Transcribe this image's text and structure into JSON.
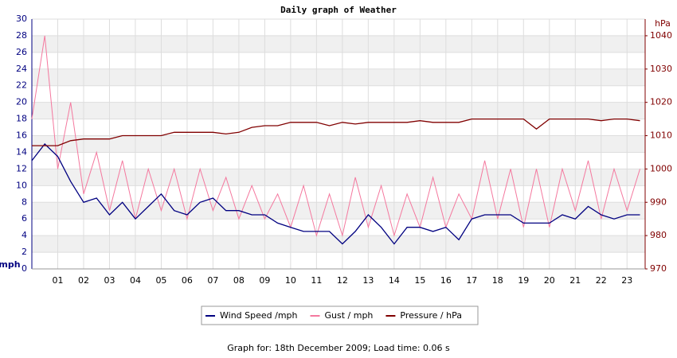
{
  "chart_data": {
    "type": "line",
    "title": "Daily graph of Weather",
    "y_label": "mph",
    "y2_label": "hPa",
    "x": [
      0,
      0.5,
      1,
      1.5,
      2,
      2.5,
      3,
      3.5,
      4,
      4.5,
      5,
      5.5,
      6,
      6.5,
      7,
      7.5,
      8,
      8.5,
      9,
      9.5,
      10,
      10.5,
      11,
      11.5,
      12,
      12.5,
      13,
      13.5,
      14,
      14.5,
      15,
      15.5,
      16,
      16.5,
      17,
      17.5,
      18,
      18.5,
      19,
      19.5,
      20,
      20.5,
      21,
      21.5,
      22,
      22.5,
      23,
      23.5
    ],
    "xlim": [
      0,
      23.7
    ],
    "xticks": [
      {
        "value": 1,
        "label": "01"
      },
      {
        "value": 2,
        "label": "02"
      },
      {
        "value": 3,
        "label": "03"
      },
      {
        "value": 4,
        "label": "04"
      },
      {
        "value": 5,
        "label": "05"
      },
      {
        "value": 6,
        "label": "06"
      },
      {
        "value": 7,
        "label": "07"
      },
      {
        "value": 8,
        "label": "08"
      },
      {
        "value": 9,
        "label": "09"
      },
      10,
      11,
      12,
      13,
      14,
      15,
      16,
      17,
      18,
      19,
      20,
      21,
      22,
      23
    ],
    "ylim": [
      0,
      30
    ],
    "yticks": [
      0,
      2,
      4,
      6,
      8,
      10,
      12,
      14,
      16,
      18,
      20,
      22,
      24,
      26,
      28,
      30
    ],
    "y2lim": [
      970,
      1045
    ],
    "y2ticks": [
      970,
      980,
      990,
      1000,
      1010,
      1020,
      1030,
      1040
    ],
    "grid": true,
    "series": [
      {
        "name": "Wind Speed /mph",
        "color": "#000080",
        "values": [
          13,
          15,
          13.5,
          10.5,
          8,
          8.5,
          6.5,
          8,
          6,
          7.5,
          9,
          7,
          6.5,
          8,
          8.5,
          7,
          7,
          6.5,
          6.5,
          5.5,
          5,
          4.5,
          4.5,
          4.5,
          3,
          4.5,
          6.5,
          5,
          3,
          5,
          5,
          4.5,
          5,
          3.5,
          6,
          6.5,
          6.5,
          6.5,
          5.5,
          5.5,
          5.5,
          6.5,
          6,
          7.5,
          6.5,
          6,
          6.5,
          6.5
        ]
      },
      {
        "name": "Gust / mph",
        "color": "#f4789e",
        "values": [
          18,
          28,
          12,
          20,
          9,
          14,
          7,
          13,
          6,
          12,
          7,
          12,
          6,
          12,
          7,
          11,
          6,
          10,
          6,
          9,
          5,
          10,
          4,
          9,
          4,
          11,
          5,
          10,
          4,
          9,
          5,
          11,
          5,
          9,
          6,
          13,
          6,
          12,
          5,
          12,
          5,
          12,
          7,
          13,
          6,
          12,
          7,
          12
        ]
      },
      {
        "name": "Pressure / hPa",
        "color": "#800000",
        "axis": "y2",
        "values": [
          1007,
          1007,
          1007,
          1008.5,
          1009,
          1009,
          1009,
          1010,
          1010,
          1010,
          1010,
          1011,
          1011,
          1011,
          1011,
          1010.5,
          1011,
          1012.5,
          1013,
          1013,
          1014,
          1014,
          1014,
          1013,
          1014,
          1013.5,
          1014,
          1014,
          1014,
          1014,
          1014.5,
          1014,
          1014,
          1014,
          1015,
          1015,
          1015,
          1015,
          1015,
          1012,
          1015,
          1015,
          1015,
          1015,
          1014.5,
          1015,
          1015,
          1014.5
        ]
      }
    ],
    "footer": "Graph for: 18th December 2009; Load time: 0.06 s"
  }
}
